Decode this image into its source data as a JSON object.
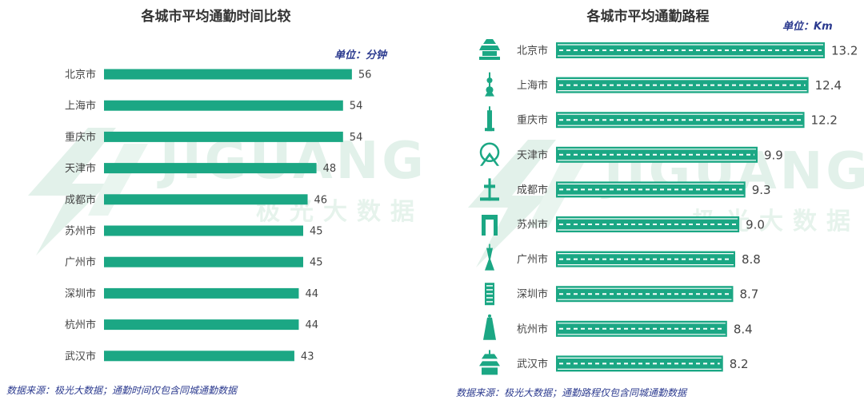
{
  "chart_data": [
    {
      "type": "bar",
      "orientation": "horizontal",
      "title": "各城市平均通勤时间比较",
      "unit": "单位：分钟",
      "categories": [
        "北京市",
        "上海市",
        "重庆市",
        "天津市",
        "成都市",
        "苏州市",
        "广州市",
        "深圳市",
        "杭州市",
        "武汉市"
      ],
      "values": [
        56,
        54,
        54,
        48,
        46,
        45,
        45,
        44,
        44,
        43
      ],
      "xlim": [
        0,
        60
      ],
      "grid": false,
      "bar_color": "#1ba784",
      "source": "数据来源：极光大数据；通勤时间仅包含同城通勤数据"
    },
    {
      "type": "bar",
      "orientation": "horizontal",
      "title": "各城市平均通勤路程",
      "unit": "单位：Km",
      "categories": [
        "北京市",
        "上海市",
        "重庆市",
        "天津市",
        "成都市",
        "苏州市",
        "广州市",
        "深圳市",
        "杭州市",
        "武汉市"
      ],
      "values": [
        13.2,
        12.4,
        12.2,
        9.9,
        9.3,
        9.0,
        8.8,
        8.7,
        8.4,
        8.2
      ],
      "value_labels": [
        "13.2",
        "12.4",
        "12.2",
        "9.9",
        "9.3",
        "9.0",
        "8.8",
        "8.7",
        "8.4",
        "8.2"
      ],
      "xlim": [
        0,
        13.2
      ],
      "grid": false,
      "bar_color": "#1ba784",
      "bar_style": "road-with-dashed-lane",
      "icons": [
        "temple-of-heaven-icon",
        "oriental-pearl-tower-icon",
        "chongqing-tower-icon",
        "tianjin-eye-icon",
        "chengdu-tower-icon",
        "suzhou-gate-icon",
        "canton-tower-icon",
        "shenzhen-tower-icon",
        "hangzhou-pagoda-icon",
        "yellow-crane-tower-icon"
      ],
      "source": "数据来源：极光大数据；通勤路程仅包含同城通勤数据"
    }
  ],
  "watermark": {
    "brand": "JIGUANG",
    "sub": "极光大数据"
  }
}
